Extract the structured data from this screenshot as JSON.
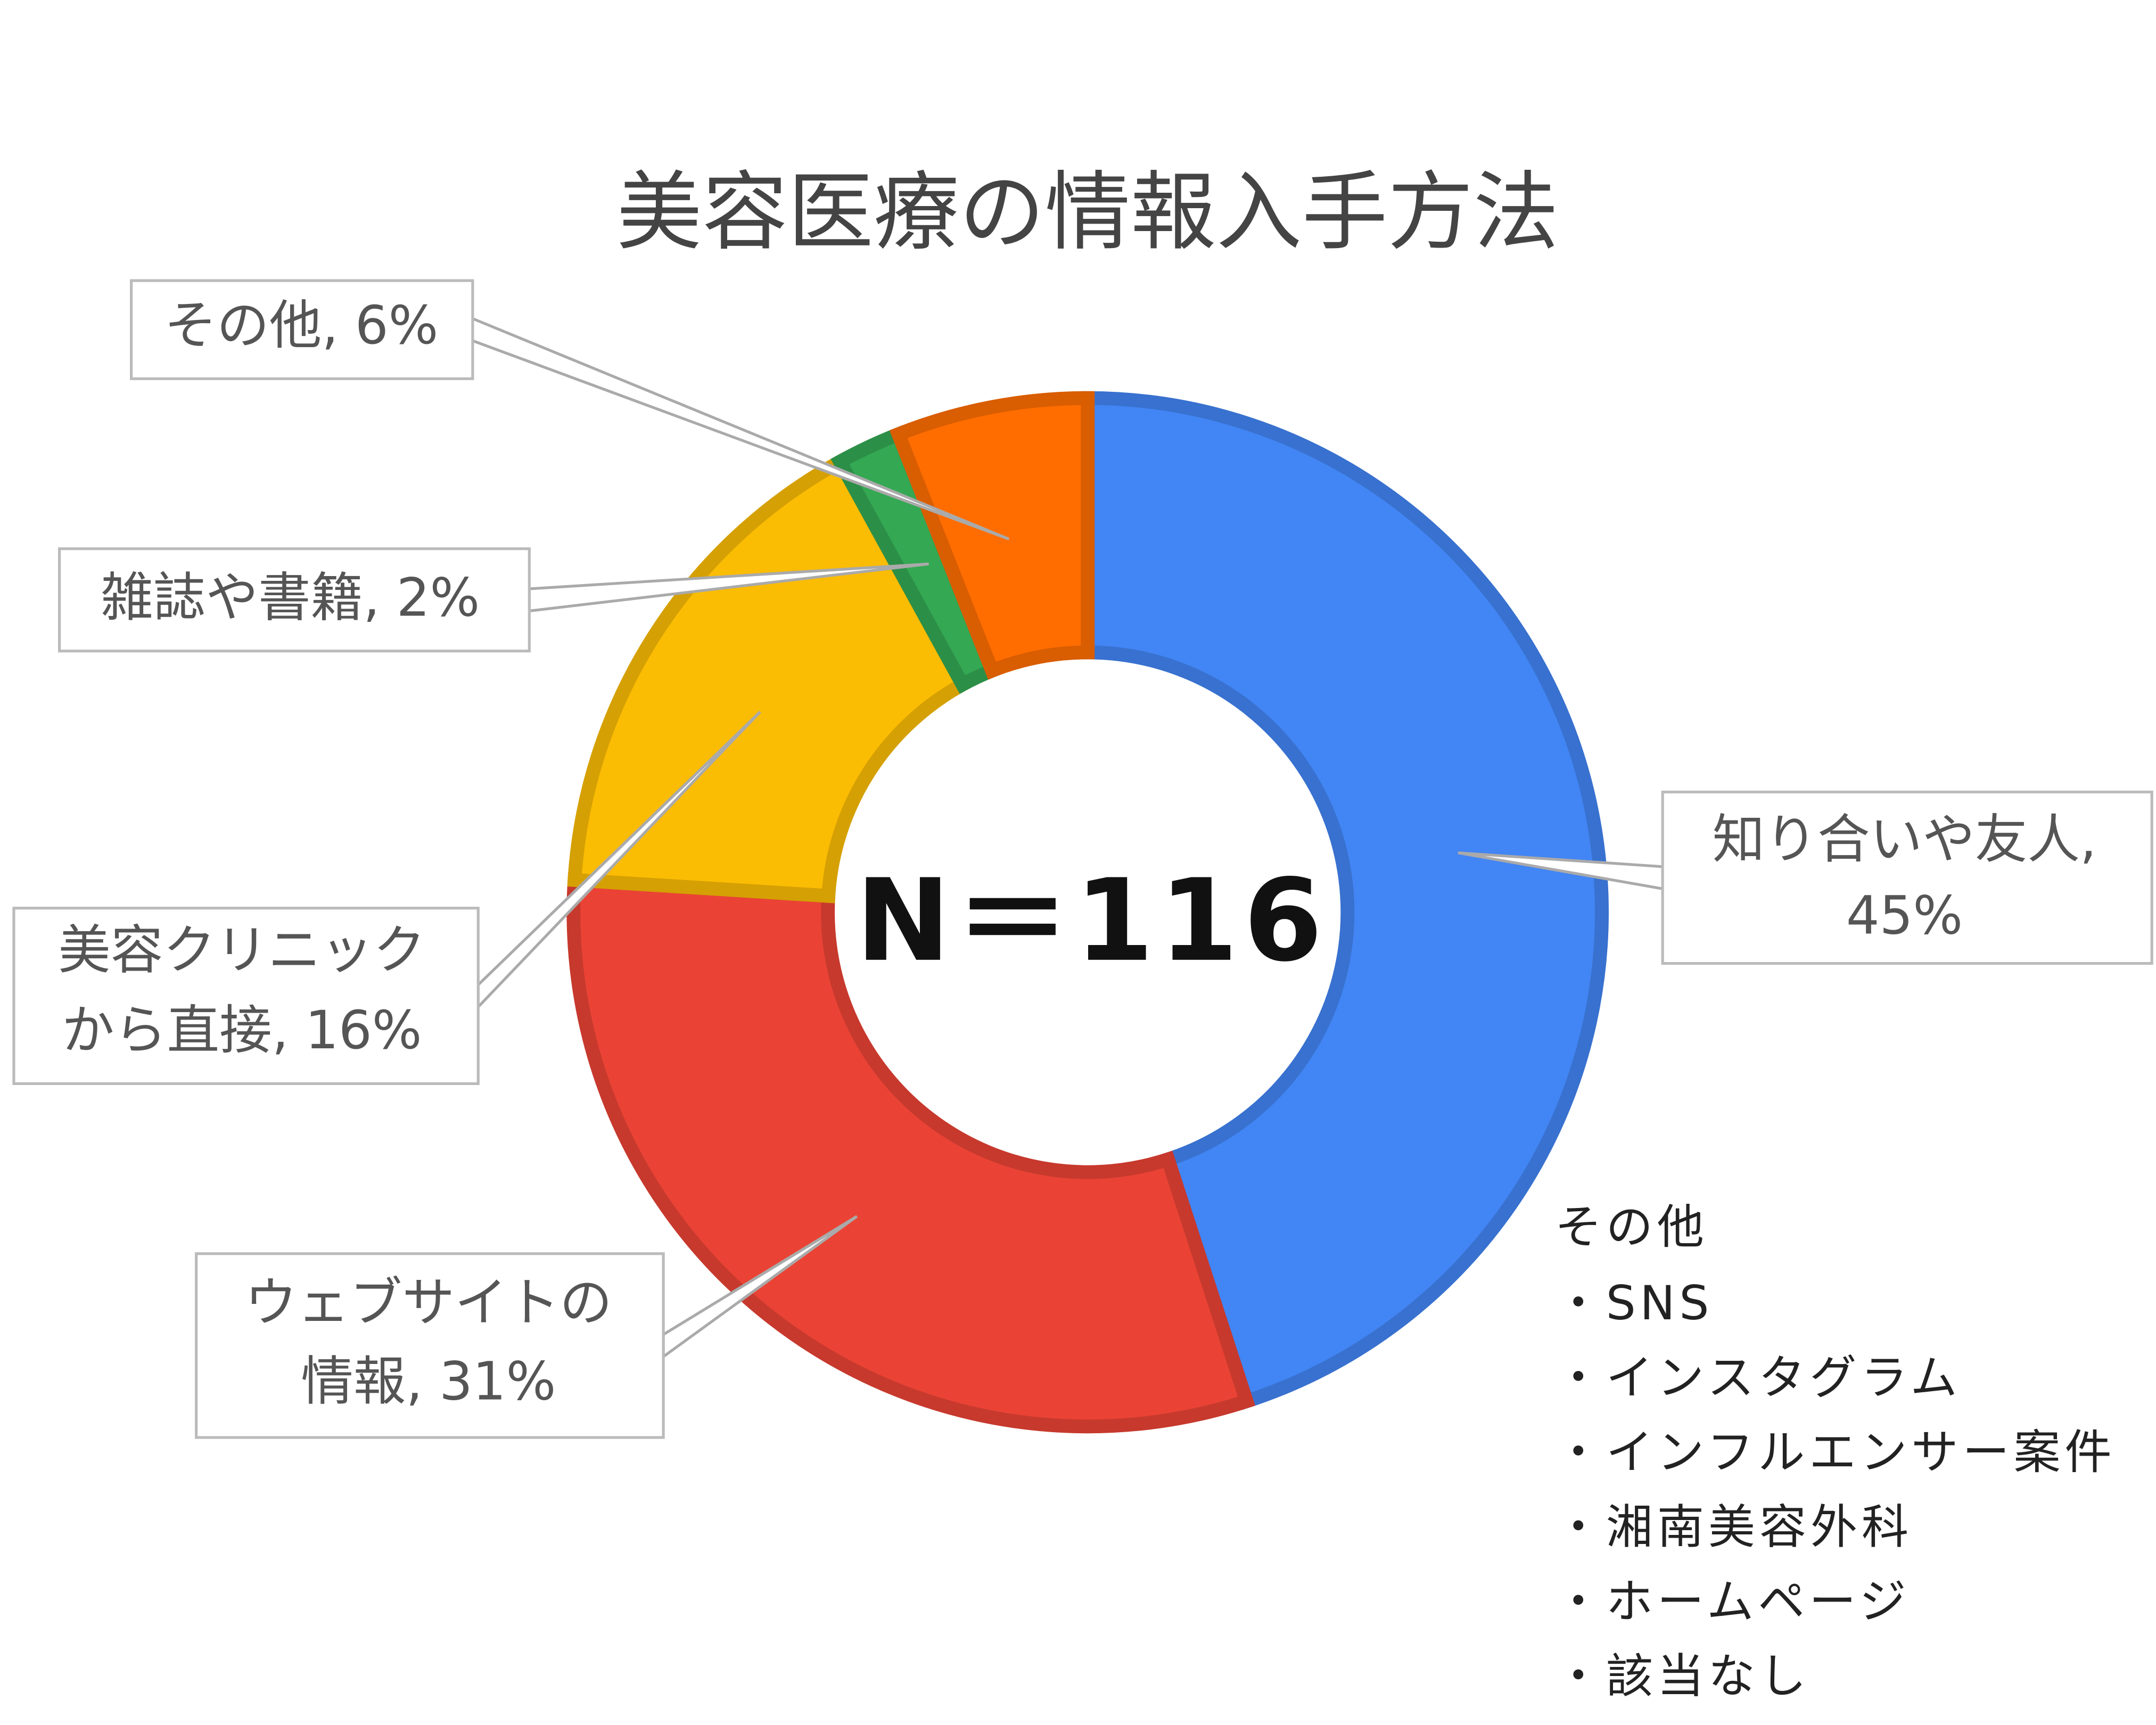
{
  "chart_data": {
    "type": "donut",
    "title": "美容医療の情報入手方法",
    "categories": [
      "知り合いや友人,",
      "ウェブサイトの情報,",
      "美容クリニックから直接,",
      "雑誌や書籍,",
      "その他,"
    ],
    "values": [
      45,
      31,
      16,
      2,
      6
    ],
    "value_labels": [
      "45%",
      "31%",
      "16%",
      "2%",
      "6%"
    ],
    "colors": [
      "#4285f4",
      "#ea4335",
      "#fbbc04",
      "#34a853",
      "#ff6d01"
    ],
    "center_label": "N＝116",
    "note": {
      "title": "その他",
      "items": [
        "・SNS",
        "・インスタグラム",
        "・インフルエンサー案件",
        "・湘南美容外科",
        "・ホームページ",
        "・該当なし"
      ]
    }
  }
}
